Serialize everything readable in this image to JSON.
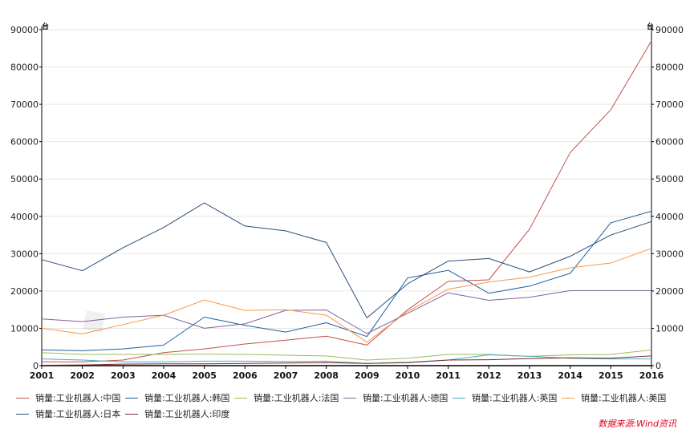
{
  "chart_data": {
    "type": "line",
    "x": [
      "2001",
      "2002",
      "2003",
      "2004",
      "2005",
      "2006",
      "2007",
      "2008",
      "2009",
      "2010",
      "2011",
      "2012",
      "2013",
      "2014",
      "2015",
      "2016"
    ],
    "ylim": [
      0,
      90000
    ],
    "yticks": [
      "0",
      "10000",
      "20000",
      "30000",
      "40000",
      "50000",
      "60000",
      "70000",
      "80000",
      "90000"
    ],
    "unit_left": "台",
    "unit_right": "台",
    "grid": "horizontal",
    "legend_position": "bottom",
    "series": [
      {
        "name": "销量:工业机器人:中国",
        "color": "#c0504d",
        "values": [
          1000,
          1000,
          1500,
          3500,
          4500,
          5800,
          6800,
          7900,
          5500,
          14978,
          22577,
          22987,
          36560,
          57096,
          68556,
          87000
        ]
      },
      {
        "name": "销量:工业机器人:韩国",
        "color": "#1f5f9e",
        "values": [
          4200,
          4000,
          4500,
          5500,
          13000,
          10800,
          9000,
          11500,
          7800,
          23508,
          25536,
          19400,
          21300,
          24721,
          38285,
          41373
        ]
      },
      {
        "name": "销量:工业机器人:法国",
        "color": "#9bbb59",
        "values": [
          3500,
          3000,
          3000,
          3000,
          3100,
          3000,
          2800,
          2600,
          1500,
          2000,
          3000,
          3000,
          2500,
          2900,
          3000,
          4200
        ]
      },
      {
        "name": "销量:工业机器人:德国",
        "color": "#8064a2",
        "values": [
          12500,
          11800,
          13000,
          13500,
          10000,
          11200,
          14800,
          14900,
          8600,
          14000,
          19500,
          17500,
          18300,
          20100,
          20100,
          20100
        ]
      },
      {
        "name": "销量:工业机器人:英国",
        "color": "#4bacc6",
        "values": [
          1800,
          1500,
          1000,
          1000,
          1200,
          1200,
          1100,
          1200,
          600,
          900,
          1500,
          2900,
          2500,
          2000,
          1800,
          1800
        ]
      },
      {
        "name": "销量:工业机器人:美国",
        "color": "#f79646",
        "values": [
          10000,
          8500,
          11000,
          13500,
          17600,
          14800,
          15000,
          13500,
          6300,
          14500,
          20500,
          22400,
          23700,
          26200,
          27500,
          31400
        ]
      },
      {
        "name": "销量:工业机器人:日本",
        "color": "#2c4d75",
        "values": [
          28400,
          25400,
          31600,
          37000,
          43600,
          37400,
          36100,
          33000,
          12800,
          21900,
          28000,
          28700,
          25100,
          29300,
          35000,
          38600
        ]
      },
      {
        "name": "销量:工业机器人:印度",
        "color": "#772c2a",
        "values": [
          100,
          200,
          400,
          500,
          500,
          600,
          700,
          800,
          600,
          800,
          1500,
          1600,
          1900,
          2100,
          2000,
          2600
        ]
      }
    ]
  },
  "source_label": "数据来源:Wind资讯"
}
